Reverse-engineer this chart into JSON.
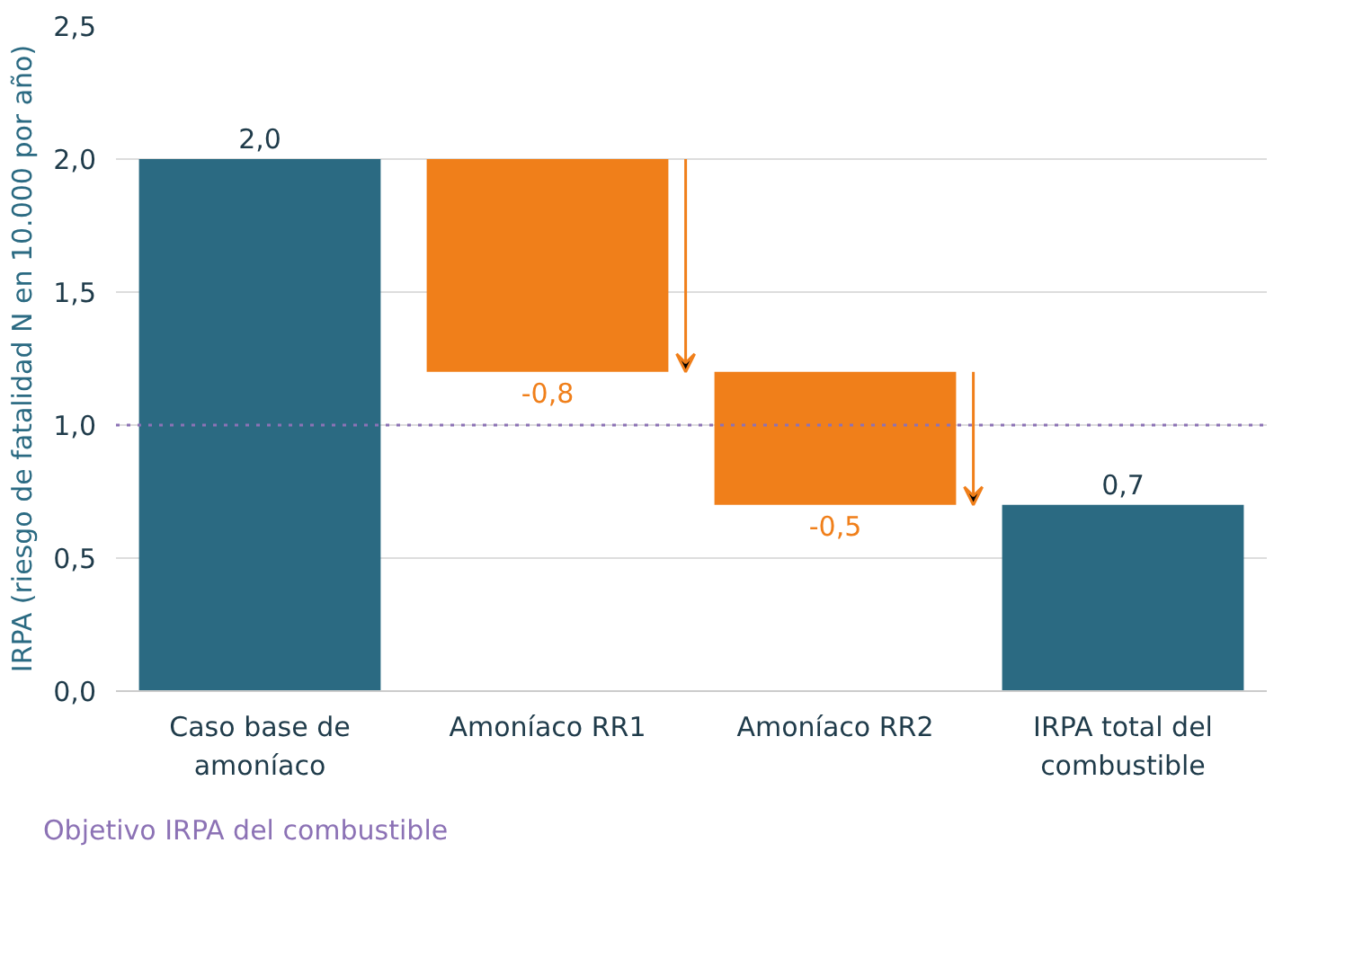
{
  "chart_data": {
    "type": "bar",
    "ylabel": "IRPA (riesgo de fatalidad N en 10.000 por año)",
    "categories": [
      "Caso base de\namoníaco",
      "Amoníaco RR1",
      "Amoníaco RR2",
      "IRPA total del\ncombustible"
    ],
    "values": [
      2.0,
      -0.8,
      -0.5,
      0.7
    ],
    "base": [
      0,
      2.0,
      1.2,
      0
    ],
    "colors": [
      "#2b6a82",
      "#f07f1a",
      "#f07f1a",
      "#2b6a82"
    ],
    "value_labels": [
      "2,0",
      "-0,8",
      "-0,5",
      "0,7"
    ],
    "ylim": [
      0,
      2.5
    ],
    "yticks": [
      {
        "value": 0,
        "label": "0,0"
      },
      {
        "value": 0.5,
        "label": "0,5"
      },
      {
        "value": 1,
        "label": "1,0"
      },
      {
        "value": 1.5,
        "label": "1,5"
      },
      {
        "value": 2,
        "label": "2,0"
      },
      {
        "value": 2.5,
        "label": "2,5"
      }
    ],
    "ref_lines": [
      {
        "axis": "y",
        "value": 1.0,
        "label": "Objetivo IRPA del combustible",
        "color": "#8c72b5",
        "line_style": "dotted"
      }
    ],
    "grid": "y",
    "legend": "bottom left"
  }
}
